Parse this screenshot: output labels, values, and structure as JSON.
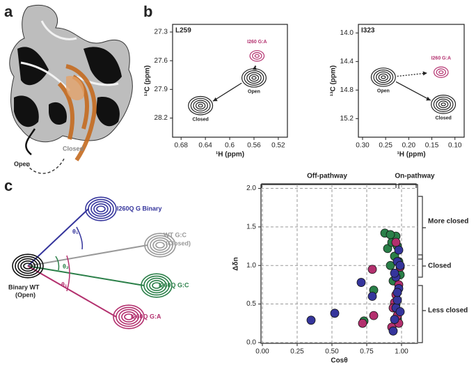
{
  "panels": {
    "a": "a",
    "b": "b",
    "c": "c"
  },
  "structure": {
    "open": "Open",
    "closed": "Closed"
  },
  "diagram": {
    "center": [
      "Binary WT",
      "(Open)"
    ],
    "nodes": [
      {
        "label": [
          "I260Q G Binary"
        ],
        "color": "#35359c"
      },
      {
        "label": [
          "WT G:C",
          "(Closed)"
        ],
        "color": "#999999"
      },
      {
        "label": [
          "I260Q G:C"
        ],
        "color": "#2a7f48"
      },
      {
        "label": [
          "I260Q G:A"
        ],
        "color": "#b3306e"
      }
    ],
    "angles": [
      "θ₁",
      "θ₂",
      "θ₁"
    ]
  },
  "brackets": {
    "top": [
      "Off-pathway",
      "On-pathway"
    ],
    "right": [
      "More closed",
      "Closed",
      "Less closed"
    ]
  },
  "chart_data": [
    {
      "type": "contour",
      "title": "L259",
      "x_label": "¹H (ppm)",
      "y_label": "¹³C (ppm)",
      "xlim": [
        0.694,
        0.505
      ],
      "ylim": [
        28.4,
        27.22
      ],
      "xticks": [
        0.68,
        0.64,
        0.6,
        {
          "value": 0.56,
          "label": "0.56"
        },
        0.52
      ],
      "yticks": [
        27.3,
        27.6,
        27.9,
        28.2
      ],
      "peaks": [
        {
          "label": "Open",
          "x": 0.56,
          "y": 27.78,
          "color": "#222222"
        },
        {
          "label": "Closed",
          "x": 0.648,
          "y": 28.07,
          "color": "#222222"
        },
        {
          "label": "I260 G:A",
          "x": 0.555,
          "y": 27.55,
          "color": "#b3306e"
        }
      ]
    },
    {
      "type": "contour",
      "title": "I323",
      "x_label": "¹H (ppm)",
      "y_label": "¹³C (ppm)",
      "xlim": [
        0.309,
        0.08
      ],
      "ylim": [
        15.46,
        13.88
      ],
      "xticks": [
        {
          "value": 0.3,
          "label": "0.30"
        },
        0.25,
        {
          "value": 0.2,
          "label": "0.20"
        },
        0.15,
        {
          "value": 0.1,
          "label": "0.10"
        }
      ],
      "yticks": [
        {
          "value": 14,
          "label": "14.0"
        },
        14.4,
        14.8,
        15.2
      ],
      "peaks": [
        {
          "label": "Open",
          "x": 0.255,
          "y": 14.62,
          "color": "#222222"
        },
        {
          "label": "Closed",
          "x": 0.125,
          "y": 15.0,
          "color": "#222222"
        },
        {
          "label": "I260 G:A",
          "x": 0.13,
          "y": 14.55,
          "color": "#b3306e"
        }
      ]
    },
    {
      "type": "scatter",
      "x_label": "Cosθ",
      "y_label": "Δδn",
      "grid": true,
      "xlim": [
        -0.01,
        1.115
      ],
      "ylim": [
        -0.01,
        2.05
      ],
      "xticks": [
        {
          "value": 0,
          "label": "0.00"
        },
        0.25,
        {
          "value": 0.5,
          "label": "0.50"
        },
        0.75,
        {
          "value": 1,
          "label": "1.00"
        }
      ],
      "yticks": [
        {
          "value": 0,
          "label": "0.0"
        },
        0.5,
        {
          "value": 1,
          "label": "1.0"
        },
        1.5,
        {
          "value": 2,
          "label": "2.0"
        }
      ],
      "series": [
        {
          "color": "#2a7f48",
          "x": [
            0.73,
            0.8,
            0.88,
            0.9,
            0.92,
            0.93,
            0.95,
            0.96,
            0.97,
            0.98,
            0.99,
            0.94,
            0.96,
            0.92,
            0.97
          ],
          "values": [
            0.28,
            0.68,
            1.42,
            1.22,
            1.0,
            1.3,
            1.12,
            1.38,
            1.25,
            1.05,
            0.88,
            0.8,
            0.5,
            1.4,
            0.3
          ]
        },
        {
          "color": "#b3306e",
          "x": [
            0.72,
            0.79,
            0.8,
            0.93,
            0.95,
            0.96,
            0.98,
            0.99,
            0.97,
            0.94,
            0.96,
            0.98
          ],
          "values": [
            0.25,
            0.95,
            0.35,
            0.2,
            0.52,
            0.62,
            0.75,
            0.98,
            0.35,
            0.45,
            1.3,
            0.25
          ]
        },
        {
          "color": "#35359c",
          "x": [
            0.35,
            0.52,
            0.71,
            0.79,
            0.94,
            0.95,
            0.96,
            0.97,
            0.98,
            0.96,
            0.97,
            0.98,
            0.99,
            0.97,
            0.95,
            0.99
          ],
          "values": [
            0.29,
            0.38,
            0.78,
            0.6,
            0.15,
            0.3,
            0.45,
            0.55,
            0.7,
            0.85,
            1.05,
            1.2,
            0.4,
            0.65,
            0.9,
            1.0
          ]
        }
      ]
    }
  ]
}
